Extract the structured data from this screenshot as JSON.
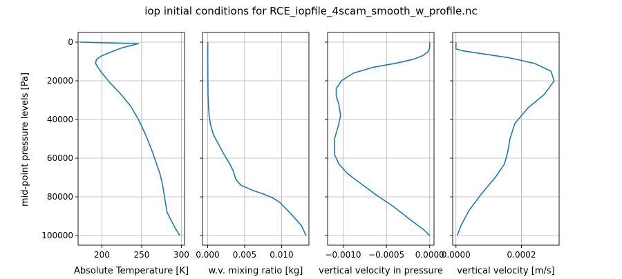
{
  "figure": {
    "title": "iop initial conditions for RCE_iopfile_4scam_smooth_w_profile.nc"
  },
  "colors": {
    "series": "#1f77b4",
    "grid": "#b0b0b0",
    "axis": "#000000"
  },
  "chart_data": [
    {
      "type": "line",
      "xlabel": "Absolute Temperature [K]",
      "ylabel": "mid-point pressure levels [Pa]",
      "xlim": [
        170,
        304
      ],
      "ylim": [
        105000,
        -5000
      ],
      "inverted_y": true,
      "grid": true,
      "xticks": [
        200,
        250,
        300
      ],
      "xtick_labels": [
        "200",
        "250",
        "300"
      ],
      "yticks": [
        0,
        20000,
        40000,
        60000,
        80000,
        100000
      ],
      "ytick_labels": [
        "0",
        "20000",
        "40000",
        "60000",
        "80000",
        "100000"
      ],
      "series": [
        {
          "x": [
            172,
            246,
            236,
            225,
            212,
            200,
            193,
            192,
            195,
            200,
            210,
            224,
            236,
            246,
            254,
            262,
            268,
            273,
            276,
            278,
            280,
            282,
            287,
            292,
            298
          ],
          "y": [
            0,
            800,
            1800,
            3000,
            5000,
            7000,
            9000,
            11000,
            13000,
            16000,
            21000,
            27000,
            33000,
            40000,
            47000,
            55000,
            62000,
            68000,
            73000,
            78000,
            83000,
            88000,
            92000,
            96000,
            100000
          ]
        }
      ]
    },
    {
      "type": "line",
      "xlabel": "w.v. mixing ratio [kg]",
      "xlim": [
        -0.0007,
        0.0137
      ],
      "ylim": [
        105000,
        -5000
      ],
      "inverted_y": true,
      "grid": true,
      "xticks": [
        0,
        0.005,
        0.01
      ],
      "xtick_labels": [
        "0.000",
        "0.005",
        "0.010"
      ],
      "yticks": [
        0,
        20000,
        40000,
        60000,
        80000,
        100000
      ],
      "series": [
        {
          "x": [
            2e-05,
            2e-05,
            3e-05,
            5e-05,
            0.0001,
            0.0002,
            0.0004,
            0.0008,
            0.0015,
            0.0022,
            0.003,
            0.0035,
            0.0038,
            0.0045,
            0.006,
            0.0075,
            0.0088,
            0.0098,
            0.0108,
            0.0118,
            0.0127,
            0.0133
          ],
          "y": [
            0,
            10000,
            20000,
            27000,
            33000,
            38000,
            43000,
            48000,
            53000,
            58000,
            63000,
            67000,
            71000,
            74000,
            76500,
            78500,
            80500,
            83000,
            87000,
            91000,
            95000,
            100000
          ]
        }
      ]
    },
    {
      "type": "line",
      "xlabel": "vertical velocity in pressure",
      "xlim": [
        -0.00118,
        5e-05
      ],
      "ylim": [
        105000,
        -5000
      ],
      "inverted_y": true,
      "grid": true,
      "xticks": [
        -0.001,
        -0.0005,
        0
      ],
      "xtick_labels": [
        "−0.0010",
        "−0.0005",
        "0.0000"
      ],
      "yticks": [
        0,
        20000,
        40000,
        60000,
        80000,
        100000
      ],
      "series": [
        {
          "x": [
            0,
            0,
            -2e-05,
            -8e-05,
            -0.0002,
            -0.0004,
            -0.00065,
            -0.00088,
            -0.00102,
            -0.00108,
            -0.00108,
            -0.00105,
            -0.00103,
            -0.00106,
            -0.0011,
            -0.0011,
            -0.00105,
            -0.00095,
            -0.0008,
            -0.00062,
            -0.00042,
            -0.00022,
            -7e-05,
            0
          ],
          "y": [
            0,
            3000,
            5000,
            7000,
            9000,
            11000,
            13000,
            16000,
            20000,
            24000,
            28000,
            32000,
            38000,
            44000,
            50000,
            58000,
            63000,
            68000,
            73000,
            79000,
            85000,
            92000,
            97000,
            100000
          ]
        }
      ]
    },
    {
      "type": "line",
      "xlabel": "vertical velocity [m/s]",
      "xlim": [
        -1e-05,
        0.000315
      ],
      "ylim": [
        105000,
        -5000
      ],
      "inverted_y": true,
      "grid": true,
      "xticks": [
        0,
        0.0002
      ],
      "xtick_labels": [
        "0.0000",
        "0.0002"
      ],
      "yticks": [
        0,
        20000,
        40000,
        60000,
        80000,
        100000
      ],
      "series": [
        {
          "x": [
            0,
            0,
            2e-05,
            8e-05,
            0.00016,
            0.00024,
            0.00029,
            0.0003,
            0.00027,
            0.00022,
            0.00018,
            0.000165,
            0.000158,
            0.000148,
            0.00012,
            8e-05,
            4e-05,
            1.5e-05,
            4e-06
          ],
          "y": [
            0,
            3500,
            4500,
            6000,
            8000,
            11000,
            15000,
            20000,
            27000,
            34000,
            42000,
            50000,
            57000,
            63000,
            70000,
            78000,
            87000,
            95000,
            100000
          ]
        }
      ]
    }
  ]
}
